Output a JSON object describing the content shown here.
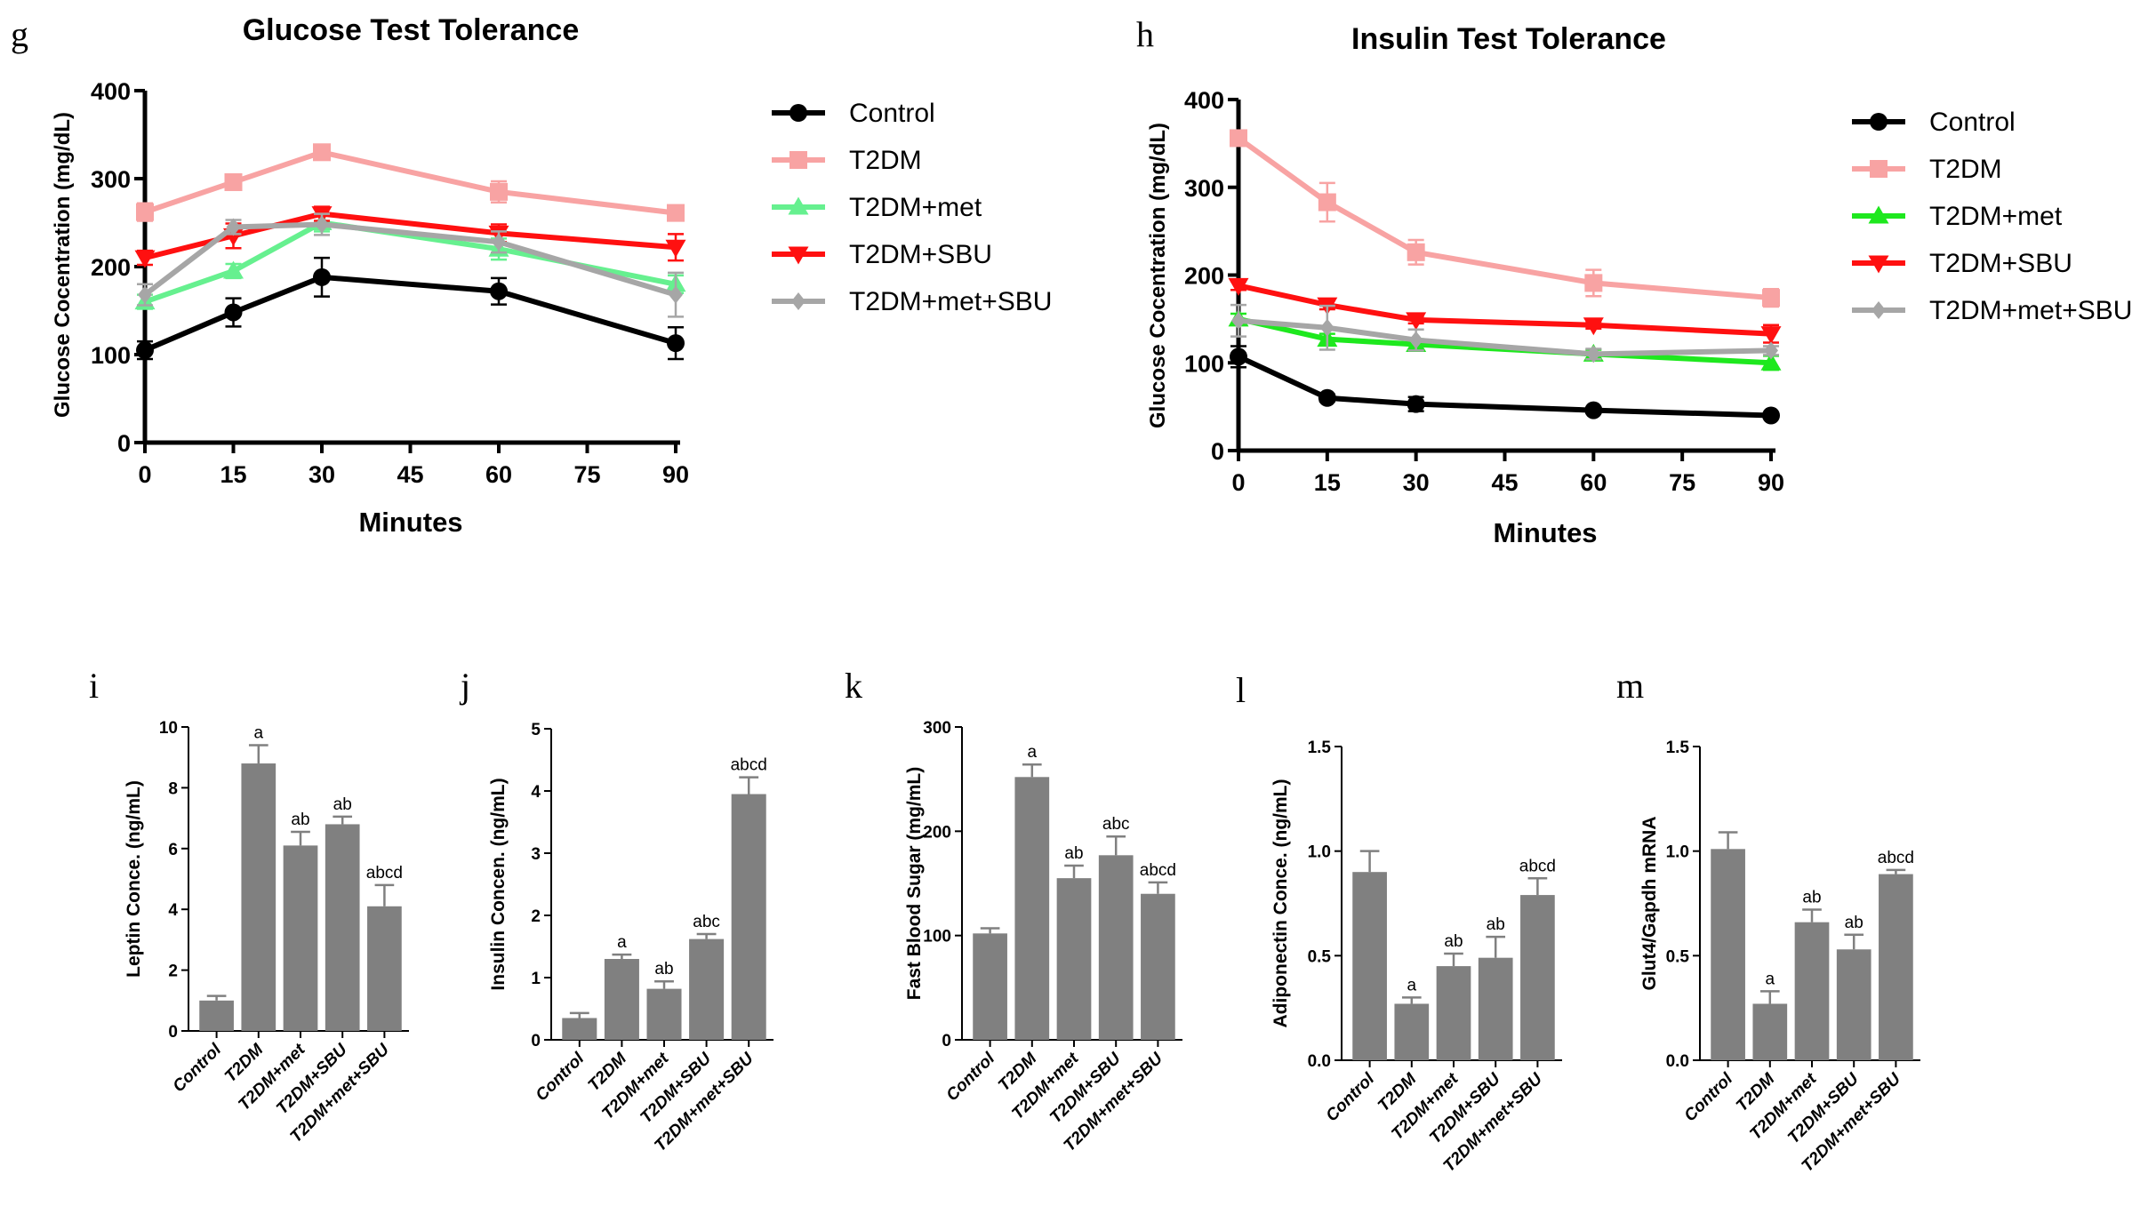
{
  "line_panels": [
    {
      "letter": "g",
      "title": "Glucose Test Tolerance",
      "xlabel": "Minutes",
      "ylabel": "Glucose Cocentration (mg/dL)",
      "xticks": [
        0,
        15,
        30,
        45,
        60,
        75,
        90
      ],
      "yticks": [
        0,
        100,
        200,
        300,
        400
      ],
      "xlim": [
        0,
        90
      ],
      "ylim": [
        0,
        400
      ],
      "legend": [
        "Control",
        "T2DM",
        "T2DM+met",
        "T2DM+SBU",
        "T2DM+met+SBU"
      ]
    },
    {
      "letter": "h",
      "title": "Insulin Test Tolerance",
      "xlabel": "Minutes",
      "ylabel": "Glucose Cocentration (mg/dL)",
      "xticks": [
        0,
        15,
        30,
        45,
        60,
        75,
        90
      ],
      "yticks": [
        0,
        100,
        200,
        300,
        400
      ],
      "xlim": [
        0,
        90
      ],
      "ylim": [
        0,
        400
      ],
      "legend": [
        "Control",
        "T2DM",
        "T2DM+met",
        "T2DM+SBU",
        "T2DM+met+SBU"
      ]
    }
  ],
  "bar_panels": [
    {
      "letter": "i",
      "ylabel": "Leptin Conce. (ng/mL)",
      "yticks": [
        0,
        2,
        4,
        6,
        8,
        10
      ],
      "categories": [
        "Control",
        "T2DM",
        "T2DM+met",
        "T2DM+SBU",
        "T2DM+met+SBU"
      ],
      "sig": [
        "",
        "a",
        "ab",
        "ab",
        "abcd"
      ]
    },
    {
      "letter": "j",
      "ylabel": "Insulin Concen. (ng/mL)",
      "yticks": [
        0,
        1,
        2,
        3,
        4,
        5
      ],
      "categories": [
        "Control",
        "T2DM",
        "T2DM+met",
        "T2DM+SBU",
        "T2DM+met+SBU"
      ],
      "sig": [
        "",
        "a",
        "ab",
        "abc",
        "abcd"
      ]
    },
    {
      "letter": "k",
      "ylabel": "Fast Blood Sugar (mg/mL)",
      "yticks": [
        0,
        100,
        200,
        300
      ],
      "categories": [
        "Control",
        "T2DM",
        "T2DM+met",
        "T2DM+SBU",
        "T2DM+met+SBU"
      ],
      "sig": [
        "",
        "a",
        "ab",
        "abc",
        "abcd"
      ]
    },
    {
      "letter": "l",
      "ylabel": "Adiponectin Conce. (ng/mL)",
      "yticks": [
        "0.0",
        "0.5",
        "1.0",
        "1.5"
      ],
      "categories": [
        "Control",
        "T2DM",
        "T2DM+met",
        "T2DM+SBU",
        "T2DM+met+SBU"
      ],
      "sig": [
        "",
        "a",
        "ab",
        "ab",
        "abcd"
      ]
    },
    {
      "letter": "m",
      "ylabel": "Glut4/Gapdh mRNA",
      "yticks": [
        "0.0",
        "0.5",
        "1.0",
        "1.5"
      ],
      "categories": [
        "Control",
        "T2DM",
        "T2DM+met",
        "T2DM+SBU",
        "T2DM+met+SBU"
      ],
      "sig": [
        "",
        "a",
        "ab",
        "ab",
        "abcd"
      ]
    }
  ],
  "chart_data": [
    {
      "type": "line",
      "title": "Glucose Test Tolerance",
      "xlabel": "Minutes",
      "ylabel": "Glucose Cocentration (mg/dL)",
      "x": [
        0,
        15,
        30,
        60,
        90
      ],
      "xlim": [
        0,
        90
      ],
      "ylim": [
        0,
        400
      ],
      "series": [
        {
          "name": "Control",
          "color": "#000000",
          "marker": "circle",
          "values": [
            105,
            148,
            188,
            172,
            113
          ],
          "errors": [
            10,
            16,
            22,
            15,
            18
          ]
        },
        {
          "name": "T2DM",
          "color": "#f8a3a3",
          "marker": "square",
          "values": [
            262,
            296,
            330,
            285,
            261
          ],
          "errors": [
            10,
            6,
            6,
            12,
            6
          ]
        },
        {
          "name": "T2DM+met",
          "color": "#66f08f",
          "marker": "triangle-up",
          "values": [
            160,
            195,
            250,
            220,
            180
          ],
          "errors": [
            8,
            8,
            10,
            12,
            10
          ]
        },
        {
          "name": "T2DM+SBU",
          "color": "#ff1010",
          "marker": "triangle-down",
          "values": [
            210,
            235,
            260,
            238,
            222
          ],
          "errors": [
            8,
            14,
            8,
            10,
            15
          ]
        },
        {
          "name": "T2DM+met+SBU",
          "color": "#a6a6a6",
          "marker": "diamond",
          "values": [
            168,
            245,
            248,
            228,
            168
          ],
          "errors": [
            12,
            8,
            12,
            12,
            25
          ]
        }
      ]
    },
    {
      "type": "line",
      "title": "Insulin Test Tolerance",
      "xlabel": "Minutes",
      "ylabel": "Glucose Cocentration (mg/dL)",
      "x": [
        0,
        15,
        30,
        60,
        90
      ],
      "xlim": [
        0,
        90
      ],
      "ylim": [
        0,
        400
      ],
      "series": [
        {
          "name": "Control",
          "color": "#000000",
          "marker": "circle",
          "values": [
            107,
            60,
            53,
            46,
            40
          ],
          "errors": [
            12,
            4,
            8,
            3,
            3
          ]
        },
        {
          "name": "T2DM",
          "color": "#f8a3a3",
          "marker": "square",
          "values": [
            356,
            283,
            226,
            191,
            174
          ],
          "errors": [
            6,
            22,
            14,
            15,
            10
          ]
        },
        {
          "name": "T2DM+met",
          "color": "#1ee81e",
          "marker": "triangle-up",
          "values": [
            150,
            127,
            121,
            110,
            100
          ],
          "errors": [
            6,
            6,
            6,
            5,
            8
          ]
        },
        {
          "name": "T2DM+SBU",
          "color": "#ff1010",
          "marker": "triangle-down",
          "values": [
            188,
            166,
            149,
            143,
            133
          ],
          "errors": [
            5,
            5,
            4,
            4,
            10
          ]
        },
        {
          "name": "T2DM+met+SBU",
          "color": "#a6a6a6",
          "marker": "diamond",
          "values": [
            148,
            140,
            126,
            110,
            114
          ],
          "errors": [
            18,
            25,
            12,
            6,
            5
          ]
        }
      ]
    },
    {
      "type": "bar",
      "ylabel": "Leptin Conce. (ng/mL)",
      "categories": [
        "Control",
        "T2DM",
        "T2DM+met",
        "T2DM+SBU",
        "T2DM+met+SBU"
      ],
      "values": [
        1.0,
        8.8,
        6.1,
        6.8,
        4.1
      ],
      "errors": [
        0.15,
        0.6,
        0.45,
        0.25,
        0.7
      ],
      "ylim": [
        0,
        10
      ]
    },
    {
      "type": "bar",
      "ylabel": "Insulin Concen. (ng/mL)",
      "categories": [
        "Control",
        "T2DM",
        "T2DM+met",
        "T2DM+SBU",
        "T2DM+met+SBU"
      ],
      "values": [
        0.35,
        1.3,
        0.82,
        1.62,
        3.95
      ],
      "errors": [
        0.08,
        0.07,
        0.12,
        0.08,
        0.27
      ],
      "ylim": [
        0,
        5
      ]
    },
    {
      "type": "bar",
      "ylabel": "Fast Blood Sugar (mg/mL)",
      "categories": [
        "Control",
        "T2DM",
        "T2DM+met",
        "T2DM+SBU",
        "T2DM+met+SBU"
      ],
      "values": [
        102,
        252,
        155,
        177,
        140
      ],
      "errors": [
        5,
        12,
        12,
        18,
        11
      ],
      "ylim": [
        0,
        300
      ]
    },
    {
      "type": "bar",
      "ylabel": "Adiponectin Conce. (ng/mL)",
      "categories": [
        "Control",
        "T2DM",
        "T2DM+met",
        "T2DM+SBU",
        "T2DM+met+SBU"
      ],
      "values": [
        0.9,
        0.27,
        0.45,
        0.49,
        0.79
      ],
      "errors": [
        0.1,
        0.03,
        0.06,
        0.1,
        0.08
      ],
      "ylim": [
        0,
        1.5
      ]
    },
    {
      "type": "bar",
      "ylabel": "Glut4/Gapdh mRNA",
      "categories": [
        "Control",
        "T2DM",
        "T2DM+met",
        "T2DM+SBU",
        "T2DM+met+SBU"
      ],
      "values": [
        1.01,
        0.27,
        0.66,
        0.53,
        0.89
      ],
      "errors": [
        0.08,
        0.06,
        0.06,
        0.07,
        0.02
      ],
      "ylim": [
        0,
        1.5
      ]
    }
  ]
}
